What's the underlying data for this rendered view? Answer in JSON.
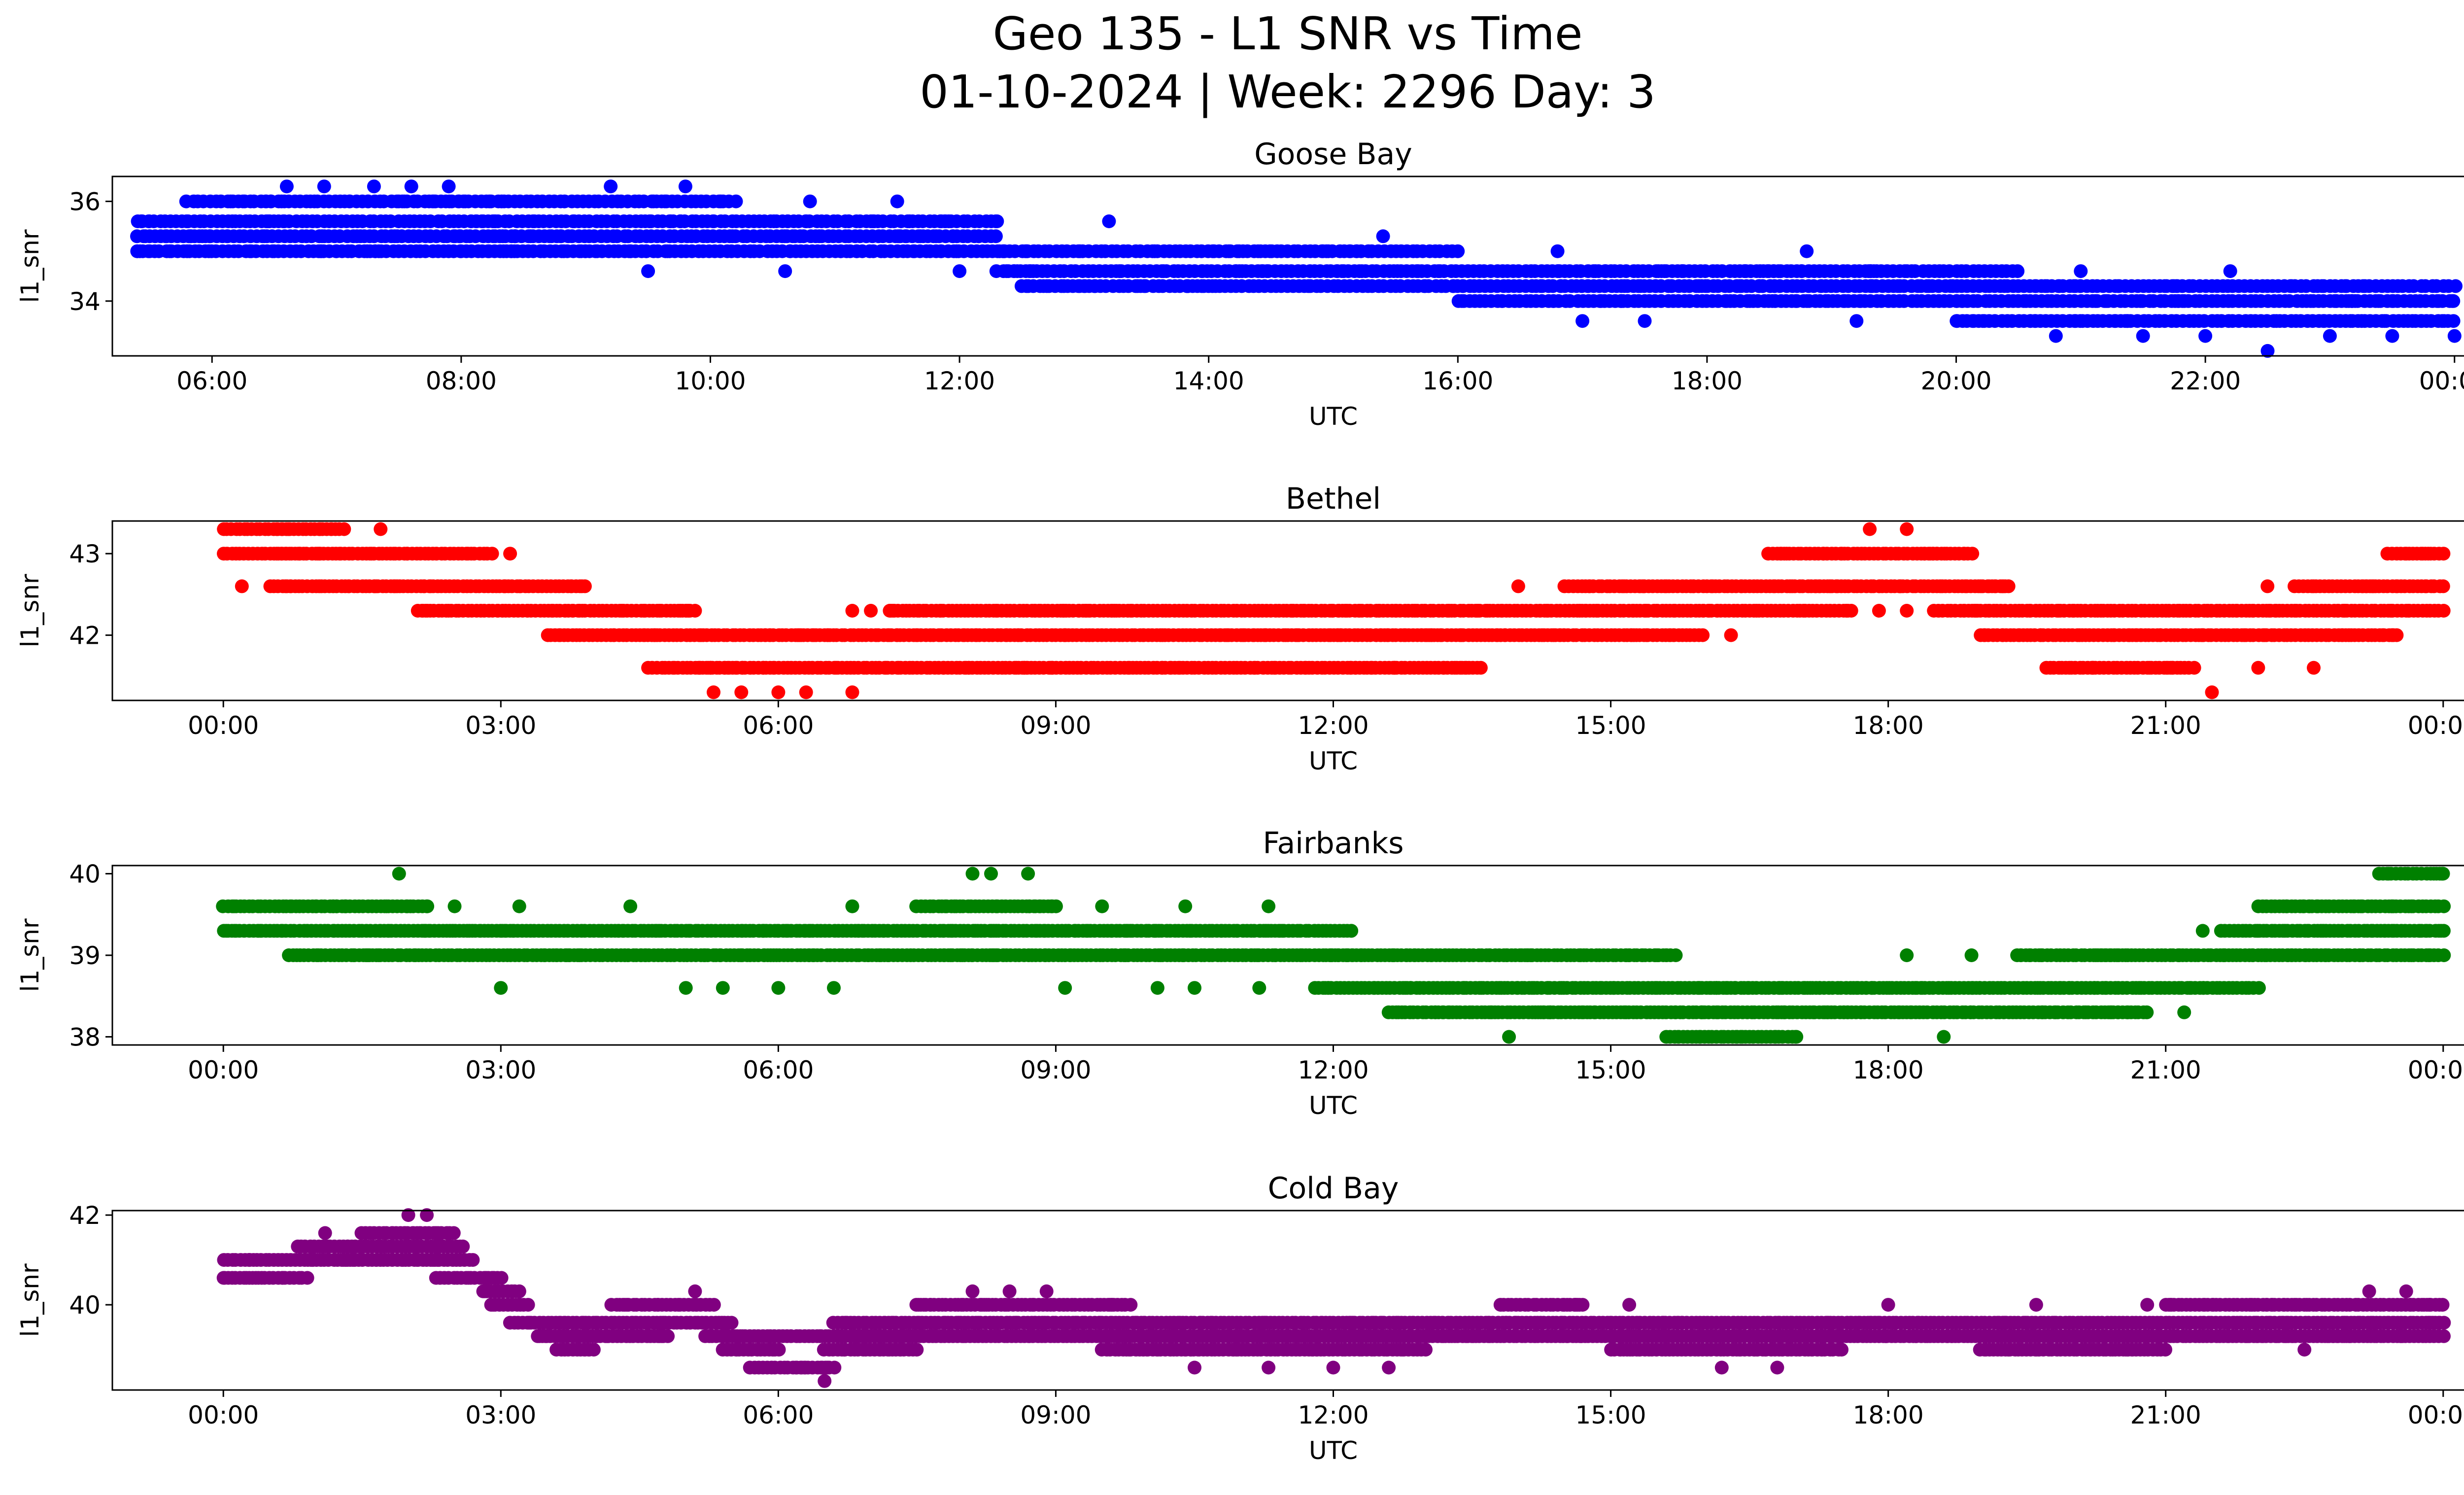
{
  "figure": {
    "title_line1": "Geo 135 - L1 SNR vs Time",
    "title_line2": "01-10-2024 | Week: 2296 Day: 3"
  },
  "chart_data": [
    {
      "type": "scatter",
      "title": "Goose Bay",
      "xlabel": "UTC",
      "ylabel": "l1_snr",
      "color": "#0000ff",
      "xlim": [
        5.2,
        24.8
      ],
      "ylim": [
        32.9,
        36.5
      ],
      "xticks": [
        6,
        8,
        10,
        12,
        14,
        16,
        18,
        20,
        22,
        24
      ],
      "xtick_labels": [
        "06:00",
        "08:00",
        "10:00",
        "12:00",
        "14:00",
        "16:00",
        "18:00",
        "20:00",
        "22:00",
        "00:00"
      ],
      "yticks": [
        34,
        36
      ],
      "ytick_labels": [
        "34",
        "36"
      ],
      "x_start": 5.4,
      "x_end": 24.0,
      "levels": [
        33.0,
        33.3,
        33.6,
        34.0,
        34.3,
        34.6,
        35.0,
        35.3,
        35.6,
        36.0,
        36.3
      ],
      "bands": [
        {
          "level": 35.6,
          "from": 5.4,
          "to": 12.3
        },
        {
          "level": 35.3,
          "from": 5.4,
          "to": 12.3
        },
        {
          "level": 35.0,
          "from": 5.4,
          "to": 16.0
        },
        {
          "level": 36.0,
          "from": 5.8,
          "to": 10.2
        },
        {
          "level": 34.6,
          "from": 12.3,
          "to": 20.5
        },
        {
          "level": 34.3,
          "from": 12.5,
          "to": 24.0
        },
        {
          "level": 34.0,
          "from": 16.0,
          "to": 24.0
        },
        {
          "level": 33.6,
          "from": 20.0,
          "to": 24.0
        }
      ],
      "scatter": [
        [
          6.6,
          36.3
        ],
        [
          6.9,
          36.3
        ],
        [
          7.3,
          36.3
        ],
        [
          7.6,
          36.3
        ],
        [
          7.9,
          36.3
        ],
        [
          9.2,
          36.3
        ],
        [
          9.8,
          36.3
        ],
        [
          5.5,
          35.0
        ],
        [
          5.8,
          35.0
        ],
        [
          9.5,
          34.6
        ],
        [
          10.6,
          34.6
        ],
        [
          11.5,
          36.0
        ],
        [
          10.8,
          36.0
        ],
        [
          12.0,
          34.6
        ],
        [
          13.0,
          34.3
        ],
        [
          13.2,
          35.6
        ],
        [
          14.8,
          34.3
        ],
        [
          15.4,
          35.3
        ],
        [
          16.8,
          35.0
        ],
        [
          17.0,
          33.6
        ],
        [
          17.5,
          33.6
        ],
        [
          18.8,
          35.0
        ],
        [
          19.2,
          33.6
        ],
        [
          20.8,
          33.3
        ],
        [
          21.5,
          33.3
        ],
        [
          22.0,
          33.3
        ],
        [
          22.5,
          33.0
        ],
        [
          23.0,
          33.3
        ],
        [
          23.5,
          33.3
        ],
        [
          24.0,
          33.3
        ],
        [
          17.8,
          34.6
        ],
        [
          18.3,
          34.6
        ],
        [
          21.0,
          34.6
        ],
        [
          22.2,
          34.6
        ]
      ]
    },
    {
      "type": "scatter",
      "title": "Bethel",
      "xlabel": "UTC",
      "ylabel": "l1_snr",
      "color": "#ff0000",
      "xlim": [
        -1.2,
        25.2
      ],
      "ylim": [
        41.2,
        43.4
      ],
      "xticks": [
        0,
        3,
        6,
        9,
        12,
        15,
        18,
        21,
        24
      ],
      "xtick_labels": [
        "00:00",
        "03:00",
        "06:00",
        "09:00",
        "12:00",
        "15:00",
        "18:00",
        "21:00",
        "00:00"
      ],
      "yticks": [
        42,
        43
      ],
      "ytick_labels": [
        "42",
        "43"
      ],
      "x_start": 0.0,
      "x_end": 24.0,
      "levels": [
        41.3,
        41.6,
        42.0,
        42.3,
        42.6,
        43.0,
        43.3
      ],
      "bands": [
        {
          "level": 43.3,
          "from": 0.0,
          "to": 1.3
        },
        {
          "level": 43.0,
          "from": 0.0,
          "to": 2.9
        },
        {
          "level": 42.6,
          "from": 0.5,
          "to": 3.9
        },
        {
          "level": 42.3,
          "from": 2.1,
          "to": 5.1
        },
        {
          "level": 42.0,
          "from": 3.5,
          "to": 16.0
        },
        {
          "level": 41.6,
          "from": 4.6,
          "to": 13.6
        },
        {
          "level": 42.3,
          "from": 7.2,
          "to": 13.0
        },
        {
          "level": 42.3,
          "from": 13.0,
          "to": 17.6
        },
        {
          "level": 42.6,
          "from": 14.5,
          "to": 19.3
        },
        {
          "level": 43.0,
          "from": 16.7,
          "to": 18.9
        },
        {
          "level": 42.3,
          "from": 18.5,
          "to": 24.0
        },
        {
          "level": 42.0,
          "from": 19.0,
          "to": 23.5
        },
        {
          "level": 41.6,
          "from": 19.7,
          "to": 21.3
        },
        {
          "level": 42.6,
          "from": 22.4,
          "to": 24.0
        },
        {
          "level": 43.0,
          "from": 23.4,
          "to": 24.0
        }
      ],
      "scatter": [
        [
          1.7,
          43.3
        ],
        [
          3.1,
          43.0
        ],
        [
          0.2,
          42.6
        ],
        [
          5.3,
          41.3
        ],
        [
          5.6,
          41.3
        ],
        [
          6.0,
          41.3
        ],
        [
          6.3,
          41.3
        ],
        [
          6.8,
          41.3
        ],
        [
          6.8,
          42.3
        ],
        [
          7.0,
          42.3
        ],
        [
          12.5,
          42.3
        ],
        [
          16.3,
          42.0
        ],
        [
          17.8,
          43.3
        ],
        [
          18.2,
          43.3
        ],
        [
          17.9,
          42.3
        ],
        [
          18.2,
          42.3
        ],
        [
          19.0,
          42.6
        ],
        [
          21.5,
          41.3
        ],
        [
          22.0,
          41.6
        ],
        [
          22.6,
          41.6
        ],
        [
          22.1,
          42.6
        ],
        [
          14.0,
          42.6
        ],
        [
          15.6,
          42.6
        ]
      ]
    },
    {
      "type": "scatter",
      "title": "Fairbanks",
      "xlabel": "UTC",
      "ylabel": "l1_snr",
      "color": "#008000",
      "xlim": [
        -1.2,
        25.2
      ],
      "ylim": [
        37.9,
        40.1
      ],
      "xticks": [
        0,
        3,
        6,
        9,
        12,
        15,
        18,
        21,
        24
      ],
      "xtick_labels": [
        "00:00",
        "03:00",
        "06:00",
        "09:00",
        "12:00",
        "15:00",
        "18:00",
        "21:00",
        "00:00"
      ],
      "yticks": [
        38,
        39,
        40
      ],
      "ytick_labels": [
        "38",
        "39",
        "40"
      ],
      "x_start": 0.0,
      "x_end": 24.0,
      "levels": [
        38.0,
        38.3,
        38.6,
        39.0,
        39.3,
        39.6,
        40.0
      ],
      "bands": [
        {
          "level": 39.3,
          "from": 0.0,
          "to": 12.2
        },
        {
          "level": 39.6,
          "from": 0.0,
          "to": 2.2
        },
        {
          "level": 39.0,
          "from": 0.7,
          "to": 15.7
        },
        {
          "level": 38.6,
          "from": 11.8,
          "to": 22.0
        },
        {
          "level": 38.3,
          "from": 12.6,
          "to": 20.8
        },
        {
          "level": 38.0,
          "from": 15.6,
          "to": 17.0
        },
        {
          "level": 39.0,
          "from": 19.4,
          "to": 24.0
        },
        {
          "level": 39.3,
          "from": 21.6,
          "to": 24.0
        },
        {
          "level": 39.6,
          "from": 22.0,
          "to": 24.0
        },
        {
          "level": 40.0,
          "from": 23.3,
          "to": 24.0
        },
        {
          "level": 39.6,
          "from": 7.5,
          "to": 9.0
        }
      ],
      "scatter": [
        [
          1.9,
          40.0
        ],
        [
          8.1,
          40.0
        ],
        [
          8.3,
          40.0
        ],
        [
          8.7,
          40.0
        ],
        [
          2.5,
          39.6
        ],
        [
          3.2,
          39.6
        ],
        [
          4.4,
          39.6
        ],
        [
          6.8,
          39.6
        ],
        [
          9.5,
          39.6
        ],
        [
          10.4,
          39.6
        ],
        [
          11.3,
          39.6
        ],
        [
          3.0,
          38.6
        ],
        [
          5.0,
          38.6
        ],
        [
          5.4,
          38.6
        ],
        [
          6.0,
          38.6
        ],
        [
          6.6,
          38.6
        ],
        [
          9.1,
          38.6
        ],
        [
          10.1,
          38.6
        ],
        [
          10.5,
          38.6
        ],
        [
          11.2,
          38.6
        ],
        [
          13.9,
          38.0
        ],
        [
          18.6,
          38.0
        ],
        [
          18.2,
          39.0
        ],
        [
          18.9,
          39.0
        ],
        [
          21.2,
          38.3
        ],
        [
          21.4,
          39.3
        ],
        [
          23.1,
          39.0
        ],
        [
          15.2,
          39.0
        ],
        [
          15.6,
          39.0
        ]
      ]
    },
    {
      "type": "scatter",
      "title": "Cold Bay",
      "xlabel": "UTC",
      "ylabel": "l1_snr",
      "color": "#800080",
      "xlim": [
        -1.2,
        25.2
      ],
      "ylim": [
        38.1,
        42.1
      ],
      "xticks": [
        0,
        3,
        6,
        9,
        12,
        15,
        18,
        21,
        24
      ],
      "xtick_labels": [
        "00:00",
        "03:00",
        "06:00",
        "09:00",
        "12:00",
        "15:00",
        "18:00",
        "21:00",
        "00:00"
      ],
      "yticks": [
        40,
        42
      ],
      "ytick_labels": [
        "40",
        "42"
      ],
      "x_start": 0.0,
      "x_end": 24.0,
      "levels": [
        38.3,
        38.6,
        39.0,
        39.3,
        39.6,
        40.0,
        40.3,
        40.6,
        41.0,
        41.3,
        41.6,
        42.0
      ],
      "bands": [
        {
          "level": 41.0,
          "from": 0.0,
          "to": 2.7
        },
        {
          "level": 40.6,
          "from": 0.0,
          "to": 0.9
        },
        {
          "level": 41.3,
          "from": 0.8,
          "to": 2.6
        },
        {
          "level": 41.6,
          "from": 1.5,
          "to": 2.5
        },
        {
          "level": 40.6,
          "from": 2.3,
          "to": 3.0
        },
        {
          "level": 40.3,
          "from": 2.8,
          "to": 3.2
        },
        {
          "level": 40.0,
          "from": 2.9,
          "to": 3.3
        },
        {
          "level": 39.6,
          "from": 3.1,
          "to": 5.5
        },
        {
          "level": 39.3,
          "from": 3.4,
          "to": 4.8
        },
        {
          "level": 39.0,
          "from": 3.6,
          "to": 4.0
        },
        {
          "level": 40.0,
          "from": 4.2,
          "to": 5.3
        },
        {
          "level": 39.3,
          "from": 5.2,
          "to": 7.0
        },
        {
          "level": 39.0,
          "from": 5.4,
          "to": 6.0
        },
        {
          "level": 38.6,
          "from": 5.7,
          "to": 6.6
        },
        {
          "level": 39.0,
          "from": 6.5,
          "to": 7.5
        },
        {
          "level": 39.3,
          "from": 6.8,
          "to": 24.0
        },
        {
          "level": 39.6,
          "from": 6.6,
          "to": 24.0
        },
        {
          "level": 40.0,
          "from": 7.5,
          "to": 9.8
        },
        {
          "level": 39.0,
          "from": 9.5,
          "to": 13.0
        },
        {
          "level": 39.0,
          "from": 15.0,
          "to": 17.5
        },
        {
          "level": 40.0,
          "from": 13.8,
          "to": 14.7
        },
        {
          "level": 40.0,
          "from": 21.0,
          "to": 24.0
        },
        {
          "level": 39.0,
          "from": 19.0,
          "to": 21.0
        }
      ],
      "scatter": [
        [
          6.5,
          38.3
        ],
        [
          6.2,
          38.6
        ],
        [
          8.1,
          40.3
        ],
        [
          8.5,
          40.3
        ],
        [
          8.9,
          40.3
        ],
        [
          5.1,
          40.3
        ],
        [
          1.1,
          41.6
        ],
        [
          2.2,
          42.0
        ],
        [
          2.0,
          42.0
        ],
        [
          11.3,
          38.6
        ],
        [
          12.0,
          38.6
        ],
        [
          12.6,
          38.6
        ],
        [
          16.2,
          38.6
        ],
        [
          16.8,
          38.6
        ],
        [
          10.5,
          38.6
        ],
        [
          23.2,
          40.3
        ],
        [
          23.6,
          40.3
        ],
        [
          15.2,
          40.0
        ],
        [
          18.0,
          40.0
        ],
        [
          19.6,
          40.0
        ],
        [
          20.8,
          40.0
        ],
        [
          19.3,
          39.0
        ],
        [
          22.5,
          39.0
        ]
      ]
    }
  ]
}
